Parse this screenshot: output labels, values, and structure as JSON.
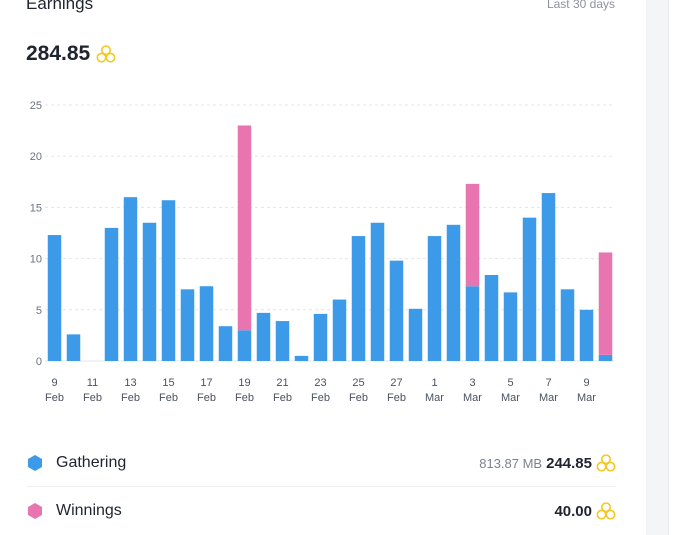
{
  "header": {
    "title": "Earnings",
    "range": "Last 30 days",
    "total": "284.85",
    "coin_icon": "honeycomb-coin-icon"
  },
  "colors": {
    "gathering": "#3d9ae8",
    "winnings": "#e875b0",
    "coin": "#f3c81f",
    "grid": "#e3e6ea",
    "axis_text": "#6b7280"
  },
  "chart_data": {
    "type": "bar",
    "stacked": true,
    "categories": [
      "9 Feb",
      "10 Feb",
      "11 Feb",
      "12 Feb",
      "13 Feb",
      "14 Feb",
      "15 Feb",
      "16 Feb",
      "17 Feb",
      "18 Feb",
      "19 Feb",
      "20 Feb",
      "21 Feb",
      "22 Feb",
      "23 Feb",
      "24 Feb",
      "25 Feb",
      "26 Feb",
      "27 Feb",
      "28 Feb",
      "1 Mar",
      "2 Mar",
      "3 Mar",
      "4 Mar",
      "5 Mar",
      "6 Mar",
      "7 Mar",
      "8 Mar",
      "9 Mar",
      "10 Mar"
    ],
    "tick_labels": [
      {
        "day": "9",
        "month": "Feb"
      },
      {
        "day": "11",
        "month": "Feb"
      },
      {
        "day": "13",
        "month": "Feb"
      },
      {
        "day": "15",
        "month": "Feb"
      },
      {
        "day": "17",
        "month": "Feb"
      },
      {
        "day": "19",
        "month": "Feb"
      },
      {
        "day": "21",
        "month": "Feb"
      },
      {
        "day": "23",
        "month": "Feb"
      },
      {
        "day": "25",
        "month": "Feb"
      },
      {
        "day": "27",
        "month": "Feb"
      },
      {
        "day": "1",
        "month": "Mar"
      },
      {
        "day": "3",
        "month": "Mar"
      },
      {
        "day": "5",
        "month": "Mar"
      },
      {
        "day": "7",
        "month": "Mar"
      },
      {
        "day": "9",
        "month": "Mar"
      }
    ],
    "series": [
      {
        "name": "Gathering",
        "values": [
          12.3,
          2.6,
          0,
          13.0,
          16.0,
          13.5,
          15.7,
          7.0,
          7.3,
          3.4,
          3.0,
          4.7,
          3.9,
          0.5,
          4.6,
          6.0,
          12.2,
          13.5,
          9.8,
          5.1,
          12.2,
          13.3,
          7.3,
          8.4,
          6.7,
          14.0,
          16.4,
          7.0,
          5.0,
          0.6
        ]
      },
      {
        "name": "Winnings",
        "values": [
          0,
          0,
          0,
          0,
          0,
          0,
          0,
          0,
          0,
          0,
          20.0,
          0,
          0,
          0,
          0,
          0,
          0,
          0,
          0,
          0,
          0,
          0,
          10.0,
          0,
          0,
          0,
          0,
          0,
          0,
          10.0
        ]
      }
    ],
    "yticks": [
      "0",
      "5",
      "10",
      "15",
      "20",
      "25"
    ],
    "ylim": [
      0,
      25
    ],
    "grid": true
  },
  "legend": {
    "gathering": {
      "label": "Gathering",
      "sub": "813.87 MB",
      "value": "244.85",
      "icon": "hexagon-icon"
    },
    "winnings": {
      "label": "Winnings",
      "value": "40.00",
      "icon": "hexagon-icon"
    }
  }
}
